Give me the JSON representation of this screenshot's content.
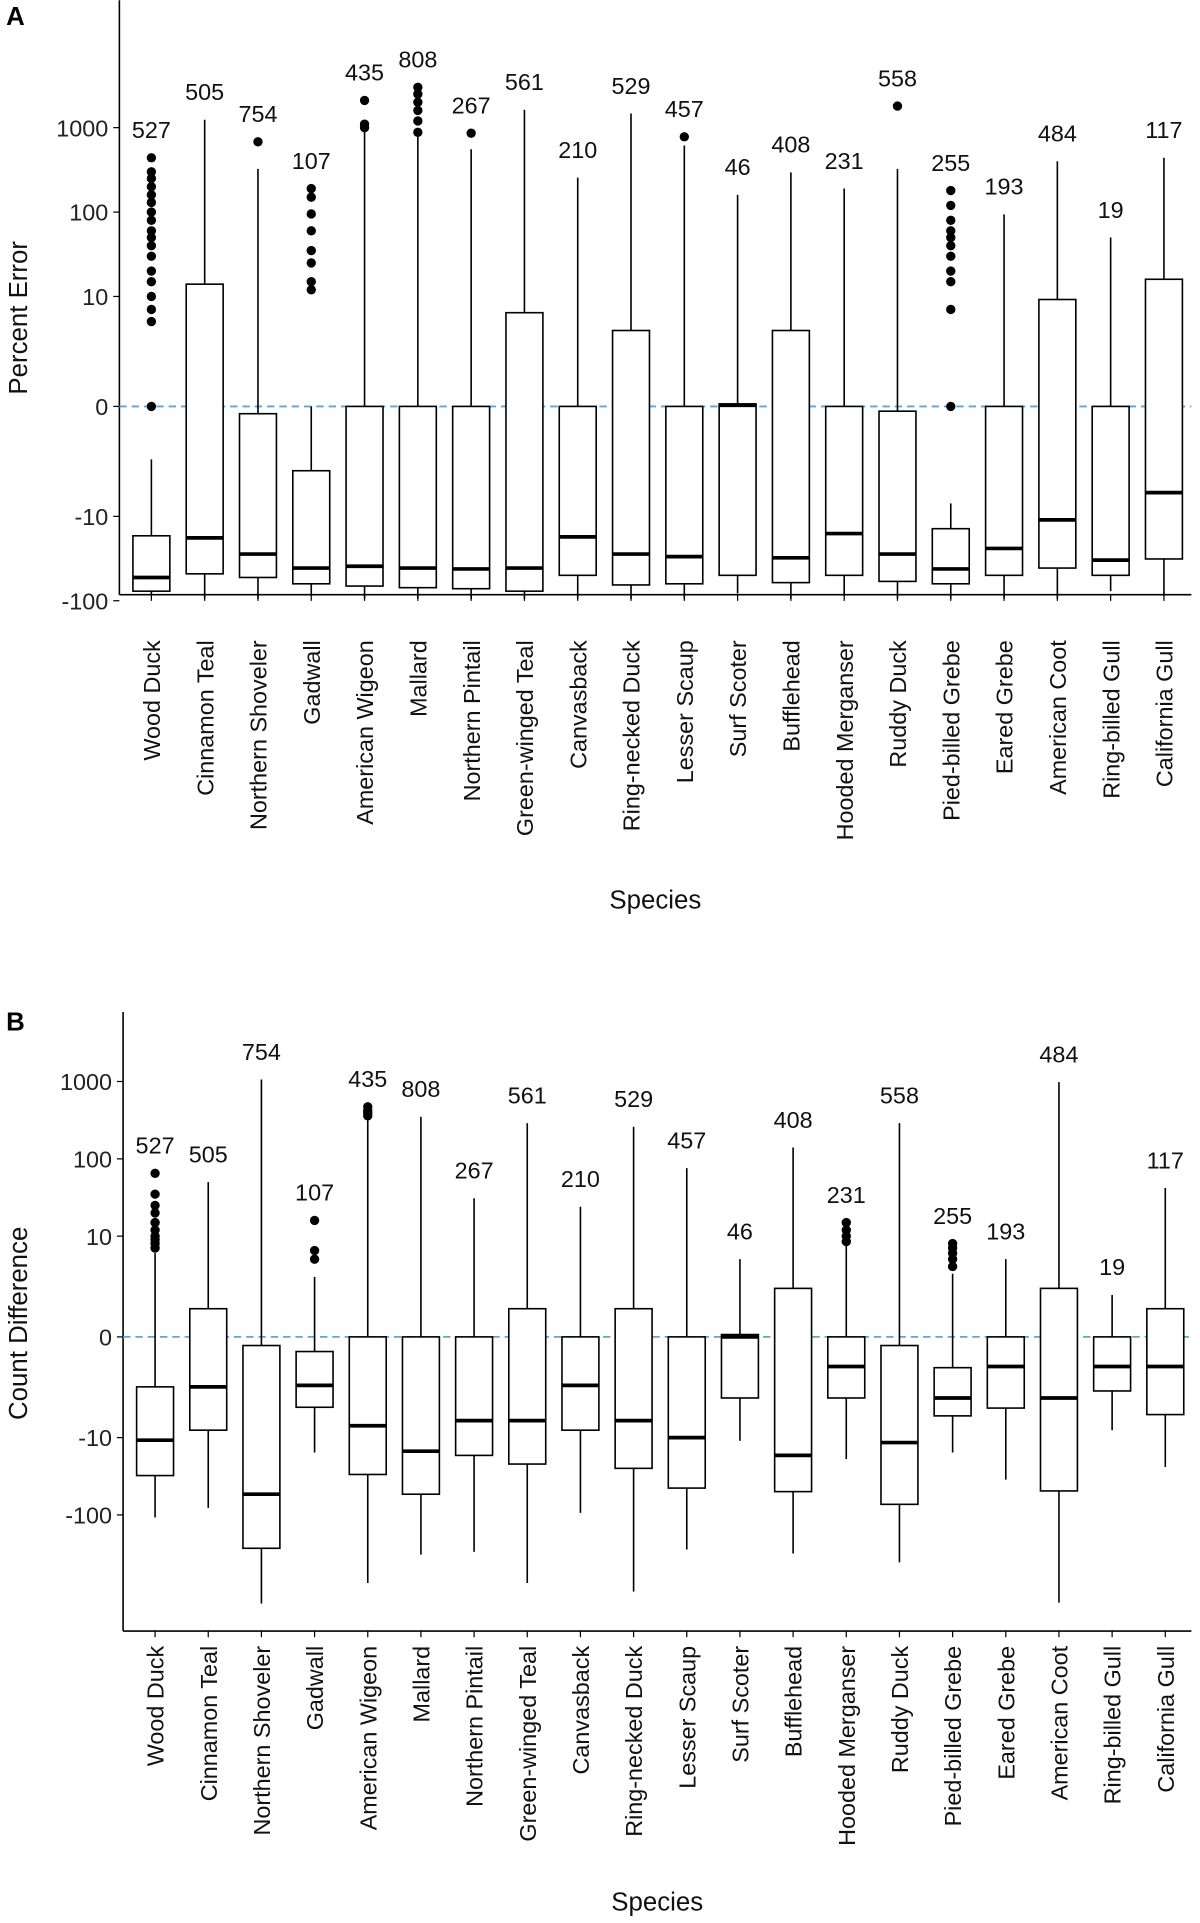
{
  "chart_data": [
    {
      "panel_label": "A",
      "type": "box",
      "xlabel": "Species",
      "ylabel": "Percent Error",
      "y_scale": "asinh (pseudo-log)",
      "yticks": [
        -100,
        -10,
        0,
        10,
        100,
        1000
      ],
      "reference_line": {
        "y": 0,
        "style": "dashed",
        "color": "#5BA7D8"
      },
      "grid": false,
      "series": [
        {
          "species": "Wood Duck",
          "n": 527,
          "low": -85,
          "q1": -77,
          "median": -53,
          "q3": -17,
          "high": -2,
          "outliers": [
            0,
            5,
            7,
            10,
            15,
            20,
            30,
            40,
            50,
            60,
            80,
            100,
            130,
            160,
            200,
            250,
            300,
            440
          ]
        },
        {
          "species": "Cinnamon Teal",
          "n": 505,
          "low": -94,
          "q1": -48,
          "median": -18,
          "q3": 14,
          "high": 1240,
          "outliers": []
        },
        {
          "species": "Northern Shoveler",
          "n": 754,
          "low": -94,
          "q1": -53,
          "median": -28,
          "q3": -0.2,
          "high": 325,
          "outliers": [
            680
          ]
        },
        {
          "species": "Gadwall",
          "n": 107,
          "low": -88,
          "q1": -63,
          "median": -41,
          "q3": -2.8,
          "high": 0,
          "outliers": [
            12,
            15,
            25,
            35,
            60,
            95,
            150,
            190
          ]
        },
        {
          "species": "American Wigeon",
          "n": 435,
          "low": -94,
          "q1": -67,
          "median": -39,
          "q3": 0,
          "high": 890,
          "outliers": [
            1000,
            1100,
            2100
          ]
        },
        {
          "species": "Mallard",
          "n": 808,
          "low": -94,
          "q1": -70,
          "median": -41,
          "q3": 0,
          "high": 890,
          "outliers": [
            880,
            1200,
            1600,
            2000,
            2500,
            3000
          ]
        },
        {
          "species": "Northern Pintail",
          "n": 267,
          "low": -95,
          "q1": -72,
          "median": -42,
          "q3": 0,
          "high": 555,
          "outliers": [
            860
          ]
        },
        {
          "species": "Green-winged Teal",
          "n": 561,
          "low": -95,
          "q1": -77,
          "median": -41,
          "q3": 6.4,
          "high": 1630,
          "outliers": []
        },
        {
          "species": "Canvasback",
          "n": 210,
          "low": -94,
          "q1": -50,
          "median": -17.5,
          "q3": 0,
          "high": 256,
          "outliers": []
        },
        {
          "species": "Ring-necked Duck",
          "n": 529,
          "low": -95,
          "q1": -65,
          "median": -28,
          "q3": 3.9,
          "high": 1470,
          "outliers": []
        },
        {
          "species": "Lesser Scaup",
          "n": 457,
          "low": -95,
          "q1": -63,
          "median": -30,
          "q3": 0,
          "high": 615,
          "outliers": [
            780
          ]
        },
        {
          "species": "Surf Scoter",
          "n": 46,
          "low": -82,
          "q1": -50,
          "median": 0.03,
          "q3": 0.07,
          "high": 160,
          "outliers": []
        },
        {
          "species": "Bufflehead",
          "n": 408,
          "low": -95,
          "q1": -61,
          "median": -31,
          "q3": 3.9,
          "high": 295,
          "outliers": []
        },
        {
          "species": "Hooded Merganser",
          "n": 231,
          "low": -88,
          "q1": -50,
          "median": -16,
          "q3": 0,
          "high": 190,
          "outliers": []
        },
        {
          "species": "Ruddy Duck",
          "n": 558,
          "low": -94,
          "q1": -59,
          "median": -28,
          "q3": -0.13,
          "high": 325,
          "outliers": [
            1800
          ]
        },
        {
          "species": "Pied-billed Grebe",
          "n": 255,
          "low": -94,
          "q1": -63,
          "median": -42,
          "q3": -14,
          "high": -7,
          "outliers": [
            0,
            7,
            15,
            20,
            30,
            40,
            50,
            60,
            80,
            120,
            180
          ]
        },
        {
          "species": "Eared Grebe",
          "n": 193,
          "low": -94,
          "q1": -50,
          "median": -24,
          "q3": 0,
          "high": 94,
          "outliers": []
        },
        {
          "species": "American Coot",
          "n": 484,
          "low": -95,
          "q1": -41,
          "median": -11,
          "q3": 9.2,
          "high": 400,
          "outliers": []
        },
        {
          "species": "Ring-billed Gull",
          "n": 19,
          "low": -77,
          "q1": -50,
          "median": -33,
          "q3": 0,
          "high": 50,
          "outliers": []
        },
        {
          "species": "California Gull",
          "n": 117,
          "low": -88,
          "q1": -32,
          "median": -5.2,
          "q3": 16,
          "high": 440,
          "outliers": []
        }
      ]
    },
    {
      "panel_label": "B",
      "type": "box",
      "xlabel": "Species",
      "ylabel": "Count Difference",
      "y_scale": "asinh (pseudo-log)",
      "yticks": [
        -100,
        -10,
        0,
        10,
        100,
        1000
      ],
      "reference_line": {
        "y": 0,
        "style": "dashed",
        "color": "#5BA7D8"
      },
      "grid": false,
      "series": [
        {
          "species": "Wood Duck",
          "n": 527,
          "low": -108,
          "q1": -31,
          "median": -10.8,
          "q3": -2.1,
          "high": 6,
          "outliers": [
            7,
            8,
            9,
            10,
            12,
            15,
            20,
            25,
            35,
            65
          ]
        },
        {
          "species": "Cinnamon Teal",
          "n": 505,
          "low": -81,
          "q1": -8,
          "median": -2.1,
          "q3": 0.94,
          "high": 50,
          "outliers": []
        },
        {
          "species": "Northern Shoveler",
          "n": 754,
          "low": -1400,
          "q1": -270,
          "median": -54,
          "q3": -0.26,
          "high": 1060,
          "outliers": []
        },
        {
          "species": "Gadwall",
          "n": 107,
          "low": -15.6,
          "q1": -4,
          "median": -2,
          "q3": -0.45,
          "high": 2.9,
          "outliers": [
            5,
            6.5,
            16
          ]
        },
        {
          "species": "American Wigeon",
          "n": 435,
          "low": -760,
          "q1": -30,
          "median": -7,
          "q3": 0,
          "high": 350,
          "outliers": [
            360,
            390,
            420,
            470
          ]
        },
        {
          "species": "Mallard",
          "n": 808,
          "low": -326,
          "q1": -54,
          "median": -15,
          "q3": 0,
          "high": 350,
          "outliers": []
        },
        {
          "species": "Northern Pintail",
          "n": 267,
          "low": -300,
          "q1": -17,
          "median": -6,
          "q3": 0,
          "high": 31,
          "outliers": []
        },
        {
          "species": "Green-winged Teal",
          "n": 561,
          "low": -760,
          "q1": -22,
          "median": -6,
          "q3": 0.94,
          "high": 290,
          "outliers": []
        },
        {
          "species": "Canvasback",
          "n": 210,
          "low": -94,
          "q1": -8,
          "median": -2,
          "q3": 0,
          "high": 24,
          "outliers": []
        },
        {
          "species": "Ring-necked Duck",
          "n": 529,
          "low": -980,
          "q1": -25,
          "median": -6,
          "q3": 0.94,
          "high": 260,
          "outliers": []
        },
        {
          "species": "Lesser Scaup",
          "n": 457,
          "low": -280,
          "q1": -45,
          "median": -10,
          "q3": 0,
          "high": 76,
          "outliers": []
        },
        {
          "species": "Surf Scoter",
          "n": 46,
          "low": -11,
          "q1": -3,
          "median": 0,
          "q3": 0.07,
          "high": 5,
          "outliers": []
        },
        {
          "species": "Bufflehead",
          "n": 408,
          "low": -315,
          "q1": -50,
          "median": -17,
          "q3": 2,
          "high": 140,
          "outliers": []
        },
        {
          "species": "Hooded Merganser",
          "n": 231,
          "low": -19,
          "q1": -3,
          "median": -1,
          "q3": 0,
          "high": 7.5,
          "outliers": [
            8.5,
            10,
            12,
            15
          ]
        },
        {
          "species": "Ruddy Duck",
          "n": 558,
          "low": -410,
          "q1": -73,
          "median": -11.6,
          "q3": -0.26,
          "high": 290,
          "outliers": []
        },
        {
          "species": "Pied-billed Grebe",
          "n": 255,
          "low": -15.6,
          "q1": -5.2,
          "median": -3,
          "q3": -1.05,
          "high": 3.2,
          "outliers": [
            4,
            5,
            6,
            7,
            8
          ]
        },
        {
          "species": "Eared Grebe",
          "n": 193,
          "low": -35,
          "q1": -4.1,
          "median": -1,
          "q3": 0,
          "high": 5,
          "outliers": []
        },
        {
          "species": "American Coot",
          "n": 484,
          "low": -1360,
          "q1": -49,
          "median": -3,
          "q3": 2,
          "high": 980,
          "outliers": []
        },
        {
          "species": "Ring-billed Gull",
          "n": 19,
          "low": -8,
          "q1": -2.4,
          "median": -1,
          "q3": 0,
          "high": 1.6,
          "outliers": []
        },
        {
          "species": "California Gull",
          "n": 117,
          "low": -24,
          "q1": -5,
          "median": -1,
          "q3": 0.94,
          "high": 42,
          "outliers": []
        }
      ]
    }
  ]
}
